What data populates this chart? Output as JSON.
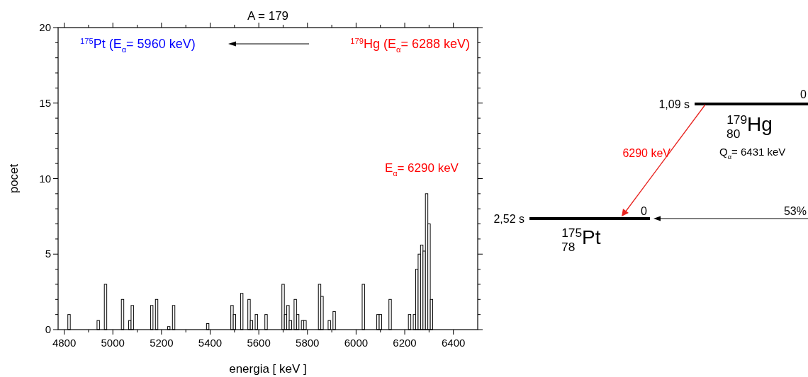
{
  "chart_data": {
    "type": "histogram",
    "title": "A = 179",
    "xlabel": "energia [ keV ]",
    "ylabel": "pocet",
    "bins": [
      4815,
      4825,
      4835,
      4845,
      4855,
      4865,
      4875,
      4885,
      4895,
      4905,
      4915,
      4925,
      4935,
      4945,
      4955,
      4965,
      4975,
      4985,
      4995,
      5005,
      5015,
      5025,
      5035,
      5045,
      5055,
      5065,
      5075,
      5085,
      5095,
      5105,
      5115,
      5125,
      5135,
      5145,
      5155,
      5165,
      5175,
      5185,
      5195,
      5205,
      5215,
      5225,
      5235,
      5245,
      5255,
      5265,
      5275,
      5285,
      5295,
      5305,
      5315,
      5325,
      5335,
      5345,
      5355,
      5365,
      5375,
      5385,
      5395,
      5405,
      5415,
      5425,
      5435,
      5445,
      5455,
      5465,
      5475,
      5485,
      5495,
      5505,
      5515,
      5525,
      5535,
      5545,
      5555,
      5565,
      5575,
      5585,
      5595,
      5605,
      5615,
      5625,
      5635,
      5645,
      5655,
      5665,
      5675,
      5685,
      5695,
      5705,
      5715,
      5725,
      5735,
      5745,
      5755,
      5765,
      5775,
      5785,
      5795,
      5805,
      5815,
      5825,
      5835,
      5845,
      5855,
      5865,
      5875,
      5885,
      5895,
      5905,
      5915,
      5925,
      5935,
      5945,
      5955,
      5965,
      5975,
      5985,
      5995,
      6005,
      6015,
      6025,
      6035,
      6045,
      6055,
      6065,
      6075,
      6085,
      6095,
      6105,
      6115,
      6125,
      6135,
      6145,
      6155,
      6165,
      6175,
      6185,
      6195,
      6205,
      6215,
      6225,
      6235,
      6245,
      6255,
      6265,
      6275,
      6285,
      6295,
      6305,
      6315
    ],
    "values": [
      1,
      0,
      0,
      0,
      0,
      0,
      0,
      0,
      0,
      0,
      0,
      0,
      0.6,
      0,
      0,
      3,
      0,
      0,
      0,
      0,
      0,
      0,
      2,
      0,
      0,
      0.6,
      1.6,
      0,
      0,
      0,
      0,
      0,
      0,
      0,
      1.6,
      0,
      2,
      0,
      0,
      0,
      0,
      0.2,
      0,
      1.6,
      0,
      0,
      0,
      0,
      0,
      0,
      0,
      0,
      0,
      0,
      0,
      0,
      0,
      0.4,
      0,
      0,
      0,
      0,
      0,
      0,
      0,
      0,
      0,
      1.6,
      1,
      0,
      0,
      2.4,
      0,
      0,
      2,
      0.6,
      0,
      1,
      0,
      0,
      0,
      1,
      0,
      0,
      0,
      0,
      0,
      0,
      3,
      1,
      1.6,
      0.6,
      0,
      2,
      1,
      0,
      0.6,
      0.6,
      0,
      0,
      0,
      0,
      0,
      3,
      2.2,
      0,
      0,
      0.6,
      0,
      1.2,
      0,
      0,
      0,
      0,
      0,
      0,
      0,
      0,
      0,
      0,
      0,
      3,
      0,
      0,
      0,
      0,
      0,
      1,
      1,
      0,
      0,
      0,
      2,
      0,
      0,
      0,
      0,
      0,
      0,
      0,
      1,
      0,
      1,
      4,
      5,
      5.6,
      5.2,
      9,
      7,
      2
    ],
    "color": "#000000",
    "xlim": [
      4775,
      6500
    ],
    "xticks": [
      4800,
      {
        "value": 4900,
        "label": null
      },
      5000,
      {
        "value": 5100,
        "label": null
      },
      5200,
      {
        "value": 5300,
        "label": null
      },
      5400,
      {
        "value": 5500,
        "label": null
      },
      5600,
      {
        "value": 5700,
        "label": null
      },
      5800,
      {
        "value": 5900,
        "label": null
      },
      6000,
      {
        "value": 6100,
        "label": null
      },
      6200,
      {
        "value": 6300,
        "label": null
      },
      6400
    ],
    "ylim": [
      0,
      20
    ],
    "yticks": [
      0,
      {
        "value": 1,
        "label": null
      },
      {
        "value": 2,
        "label": null
      },
      {
        "value": 3,
        "label": null
      },
      {
        "value": 4,
        "label": null
      },
      5,
      {
        "value": 6,
        "label": null
      },
      {
        "value": 7,
        "label": null
      },
      {
        "value": 8,
        "label": null
      },
      {
        "value": 9,
        "label": null
      },
      10,
      {
        "value": 11,
        "label": null
      },
      {
        "value": 12,
        "label": null
      },
      {
        "value": 13,
        "label": null
      },
      {
        "value": 14,
        "label": null
      },
      15,
      {
        "value": 16,
        "label": null
      },
      {
        "value": 17,
        "label": null
      },
      {
        "value": 18,
        "label": null
      },
      {
        "value": 19,
        "label": null
      },
      20
    ],
    "grid": false,
    "annotations": [
      "$^{175}$Pt (E$_{α}$= 5960 keV)",
      "$^{179}$Hg (E$_{α}$= 6288 keV)",
      "E$_{α}$= 6290 keV",
      "1,09 s",
      "$^{179}$$_{80}$Hg",
      "Q$_{α}$= 6431 keV",
      "6290 keV",
      "2,52 s",
      "0",
      "$^{175}$$_{78}$Pt",
      "53%",
      "0"
    ]
  }
}
